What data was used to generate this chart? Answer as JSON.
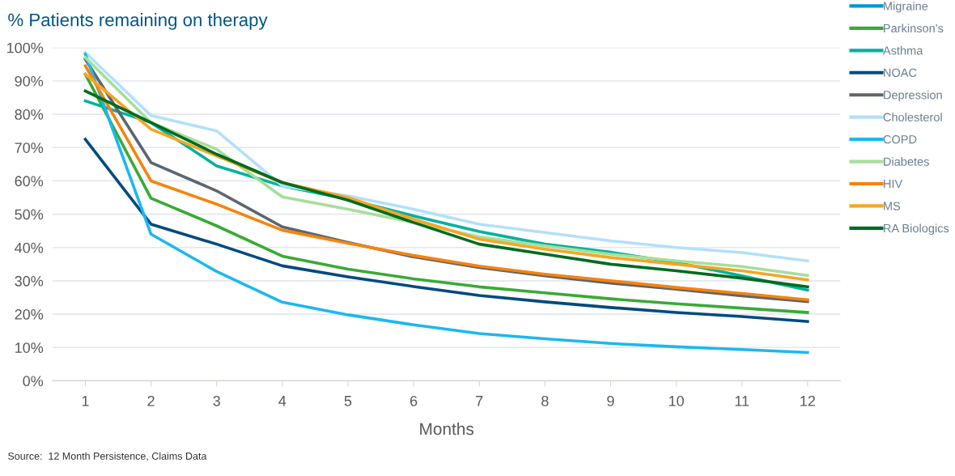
{
  "chart_data": {
    "type": "line",
    "title": "% Patients remaining on therapy",
    "xlabel": "Months",
    "categories": [
      "1",
      "2",
      "3",
      "4",
      "5",
      "6",
      "7",
      "8",
      "9",
      "10",
      "11",
      "12"
    ],
    "ylim": [
      0,
      100
    ],
    "yticks": [
      {
        "value": 0,
        "label": "0%"
      },
      {
        "value": 10,
        "label": "10%"
      },
      {
        "value": 20,
        "label": "20%"
      },
      {
        "value": 30,
        "label": "30%"
      },
      {
        "value": 40,
        "label": "40%"
      },
      {
        "value": 50,
        "label": "50%"
      },
      {
        "value": 60,
        "label": "60%"
      },
      {
        "value": 70,
        "label": "70%"
      },
      {
        "value": 80,
        "label": "80%"
      },
      {
        "value": 90,
        "label": "90%"
      },
      {
        "value": 100,
        "label": "100%"
      }
    ],
    "grid": "y",
    "legend": "right",
    "marker": "none",
    "line_style": "solid",
    "annotations": [
      "Source:  12 Month Persistence, Claims Data"
    ],
    "series": [
      {
        "name": "Migraine",
        "color": "#0096d6",
        "values": [
          null,
          null,
          null,
          null,
          null,
          null,
          null,
          null,
          null,
          null,
          null,
          null
        ]
      },
      {
        "name": "Parkinson's",
        "color": "#3aaa35",
        "values": [
          92,
          54.8,
          46.5,
          37.4,
          33.5,
          30.6,
          28.2,
          26.4,
          24.6,
          23.1,
          21.8,
          20.5
        ]
      },
      {
        "name": "Asthma",
        "color": "#00b1a0",
        "values": [
          84,
          77.5,
          64.5,
          58.5,
          54.5,
          49.5,
          44.8,
          41,
          38.6,
          35.5,
          31.5,
          27.2
        ]
      },
      {
        "name": "NOAC",
        "color": "#004a80",
        "values": [
          72.5,
          47,
          41,
          34.5,
          31.2,
          28.3,
          25.6,
          23.7,
          22,
          20.5,
          19.3,
          17.8
        ]
      },
      {
        "name": "Depression",
        "color": "#5b6670",
        "values": [
          96.5,
          65.5,
          57,
          46.2,
          41.5,
          37.2,
          34,
          31.5,
          29.3,
          27.5,
          25.5,
          23.8
        ]
      },
      {
        "name": "Cholesterol",
        "color": "#b3e0fa",
        "values": [
          98.5,
          79.6,
          75,
          58.5,
          55.5,
          51.5,
          47,
          44.5,
          42,
          40,
          38.5,
          36
        ]
      },
      {
        "name": "COPD",
        "color": "#1bb8f0",
        "values": [
          98,
          44,
          32.8,
          23.6,
          19.8,
          16.8,
          14.2,
          12.6,
          11.2,
          10.2,
          9.4,
          8.5
        ]
      },
      {
        "name": "Diabetes",
        "color": "#a6df9a",
        "values": [
          97,
          77.5,
          69.5,
          55.2,
          51.5,
          47.5,
          43.2,
          40.5,
          38,
          36,
          34.3,
          31.6
        ]
      },
      {
        "name": "HIV",
        "color": "#f7830f",
        "values": [
          94.5,
          60,
          53,
          45.2,
          41.3,
          37.6,
          34.4,
          32,
          30,
          28,
          26.2,
          24.3
        ]
      },
      {
        "name": "MS",
        "color": "#f5a623",
        "values": [
          92,
          75.5,
          67.5,
          59.5,
          55,
          48.5,
          42.5,
          39.5,
          37,
          35,
          33,
          30.3
        ]
      },
      {
        "name": "RA Biologics",
        "color": "#006b1f",
        "values": [
          87,
          77.5,
          68,
          59.5,
          54.2,
          47.5,
          41,
          38,
          35,
          33,
          30.8,
          28.2
        ]
      }
    ]
  }
}
